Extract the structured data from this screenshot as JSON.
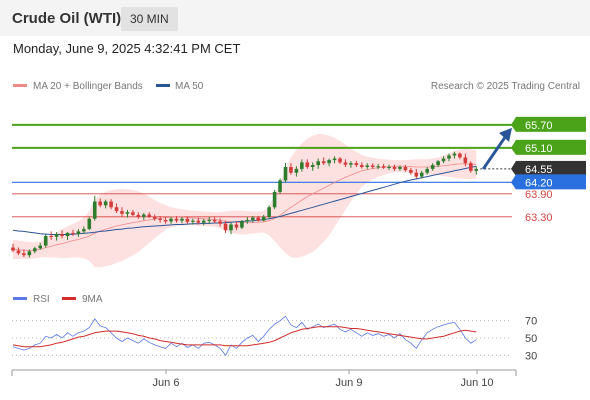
{
  "header": {
    "title": "Crude Oil (WTI)",
    "interval": "30 MIN"
  },
  "datetime": "Monday, June 9, 2025 4:32:41 PM CET",
  "credit": "Research © 2025 Trading Central",
  "legend": {
    "ma20": "MA 20 + Bollinger Bands",
    "ma50": "MA 50",
    "rsi": "RSI",
    "ma9": "9MA"
  },
  "colors": {
    "up": "#2e7d2e",
    "down": "#d43b3b",
    "ma20": "#f08a8a",
    "band": "#fde0e0",
    "ma50": "#2a5599",
    "resistance": "#4aa318",
    "support": "#d64545",
    "pivot": "#2a70e0",
    "current": "#333333",
    "rsi": "#5a78e6",
    "rsi_ma": "#d42b2b"
  },
  "chart_data": [
    {
      "type": "candlestick",
      "name": "Crude Oil (WTI)",
      "ylim": [
        61.6,
        66.4
      ],
      "x_labels": [
        "Jun 6",
        "Jun 9",
        "Jun 10"
      ],
      "ohlc": [
        [
          62.5,
          62.6,
          62.38,
          62.42
        ],
        [
          62.42,
          62.5,
          62.3,
          62.35
        ],
        [
          62.35,
          62.45,
          62.25,
          62.3
        ],
        [
          62.3,
          62.45,
          62.24,
          62.4
        ],
        [
          62.4,
          62.52,
          62.35,
          62.48
        ],
        [
          62.48,
          62.62,
          62.44,
          62.55
        ],
        [
          62.55,
          62.85,
          62.5,
          62.8
        ],
        [
          62.8,
          62.92,
          62.7,
          62.78
        ],
        [
          62.78,
          62.9,
          62.68,
          62.85
        ],
        [
          62.85,
          62.95,
          62.74,
          62.8
        ],
        [
          62.8,
          62.9,
          62.7,
          62.88
        ],
        [
          62.88,
          62.96,
          62.8,
          62.85
        ],
        [
          62.85,
          62.98,
          62.78,
          62.92
        ],
        [
          62.92,
          63.05,
          62.85,
          62.98
        ],
        [
          62.98,
          63.3,
          62.95,
          63.25
        ],
        [
          63.25,
          63.85,
          63.2,
          63.7
        ],
        [
          63.7,
          63.78,
          63.55,
          63.6
        ],
        [
          63.6,
          63.75,
          63.52,
          63.7
        ],
        [
          63.7,
          63.76,
          63.5,
          63.55
        ],
        [
          63.55,
          63.65,
          63.4,
          63.45
        ],
        [
          63.45,
          63.55,
          63.3,
          63.38
        ],
        [
          63.38,
          63.48,
          63.28,
          63.42
        ],
        [
          63.42,
          63.48,
          63.32,
          63.35
        ],
        [
          63.35,
          63.42,
          63.25,
          63.3
        ],
        [
          63.3,
          63.4,
          63.22,
          63.36
        ],
        [
          63.36,
          63.42,
          63.27,
          63.3
        ],
        [
          63.3,
          63.36,
          63.2,
          63.25
        ],
        [
          63.25,
          63.32,
          63.15,
          63.22
        ],
        [
          63.22,
          63.3,
          63.12,
          63.18
        ],
        [
          63.18,
          63.3,
          63.12,
          63.25
        ],
        [
          63.25,
          63.32,
          63.15,
          63.2
        ],
        [
          63.2,
          63.3,
          63.13,
          63.25
        ],
        [
          63.25,
          63.3,
          63.12,
          63.17
        ],
        [
          63.17,
          63.25,
          63.1,
          63.2
        ],
        [
          63.2,
          63.28,
          63.1,
          63.15
        ],
        [
          63.15,
          63.25,
          63.08,
          63.2
        ],
        [
          63.2,
          63.3,
          63.12,
          63.22
        ],
        [
          63.22,
          63.3,
          63.14,
          63.18
        ],
        [
          63.18,
          63.26,
          63.05,
          63.12
        ],
        [
          63.12,
          63.2,
          62.88,
          62.95
        ],
        [
          62.95,
          63.15,
          62.85,
          63.1
        ],
        [
          63.1,
          63.18,
          62.95,
          63.02
        ],
        [
          63.02,
          63.22,
          62.98,
          63.18
        ],
        [
          63.18,
          63.3,
          63.12,
          63.22
        ],
        [
          63.22,
          63.32,
          63.15,
          63.28
        ],
        [
          63.28,
          63.32,
          63.18,
          63.2
        ],
        [
          63.2,
          63.35,
          63.18,
          63.3
        ],
        [
          63.3,
          63.6,
          63.25,
          63.55
        ],
        [
          63.55,
          64.0,
          63.5,
          63.95
        ],
        [
          63.95,
          64.3,
          63.9,
          64.25
        ],
        [
          64.25,
          64.7,
          64.2,
          64.6
        ],
        [
          64.6,
          64.7,
          64.4,
          64.45
        ],
        [
          64.45,
          64.62,
          64.35,
          64.55
        ],
        [
          64.55,
          64.8,
          64.48,
          64.72
        ],
        [
          64.72,
          64.8,
          64.55,
          64.6
        ],
        [
          64.6,
          64.72,
          64.5,
          64.65
        ],
        [
          64.65,
          64.82,
          64.55,
          64.75
        ],
        [
          64.75,
          64.85,
          64.65,
          64.7
        ],
        [
          64.7,
          64.82,
          64.62,
          64.78
        ],
        [
          64.78,
          64.88,
          64.7,
          64.82
        ],
        [
          64.82,
          64.86,
          64.68,
          64.72
        ],
        [
          64.72,
          64.8,
          64.6,
          64.66
        ],
        [
          64.66,
          64.75,
          64.58,
          64.7
        ],
        [
          64.7,
          64.76,
          64.6,
          64.65
        ],
        [
          64.65,
          64.72,
          64.56,
          64.6
        ],
        [
          64.6,
          64.7,
          64.55,
          64.64
        ],
        [
          64.64,
          64.7,
          64.55,
          64.6
        ],
        [
          64.6,
          64.68,
          64.54,
          64.62
        ],
        [
          64.62,
          64.68,
          64.55,
          64.58
        ],
        [
          64.58,
          64.66,
          64.52,
          64.6
        ],
        [
          64.6,
          64.66,
          64.5,
          64.55
        ],
        [
          64.55,
          64.64,
          64.5,
          64.6
        ],
        [
          64.6,
          64.65,
          64.48,
          64.52
        ],
        [
          64.52,
          64.58,
          64.4,
          64.45
        ],
        [
          64.45,
          64.55,
          64.3,
          64.35
        ],
        [
          64.35,
          64.5,
          64.3,
          64.45
        ],
        [
          64.45,
          64.6,
          64.4,
          64.55
        ],
        [
          64.55,
          64.7,
          64.5,
          64.65
        ],
        [
          64.65,
          64.78,
          64.6,
          64.75
        ],
        [
          64.75,
          64.88,
          64.7,
          64.82
        ],
        [
          64.82,
          64.95,
          64.75,
          64.9
        ],
        [
          64.9,
          65.0,
          64.82,
          64.95
        ],
        [
          64.95,
          64.98,
          64.8,
          64.85
        ],
        [
          64.85,
          64.95,
          64.62,
          64.7
        ],
        [
          64.7,
          64.75,
          64.45,
          64.5
        ],
        [
          64.5,
          64.62,
          64.4,
          64.55
        ]
      ],
      "ma20": [
        62.45,
        62.44,
        62.43,
        62.42,
        62.43,
        62.45,
        62.5,
        62.53,
        62.57,
        62.6,
        62.64,
        62.68,
        62.71,
        62.75,
        62.8,
        62.87,
        62.93,
        62.98,
        63.02,
        63.06,
        63.09,
        63.12,
        63.15,
        63.17,
        63.2,
        63.22,
        63.24,
        63.26,
        63.28,
        63.29,
        63.29,
        63.29,
        63.28,
        63.27,
        63.26,
        63.25,
        63.24,
        63.23,
        63.21,
        63.19,
        63.17,
        63.16,
        63.15,
        63.15,
        63.15,
        63.16,
        63.17,
        63.2,
        63.26,
        63.34,
        63.45,
        63.55,
        63.64,
        63.74,
        63.83,
        63.9,
        63.98,
        64.05,
        64.12,
        64.2,
        64.27,
        64.33,
        64.39,
        64.45,
        64.5,
        64.53,
        64.56,
        64.58,
        64.6,
        64.61,
        64.62,
        64.62,
        64.62,
        64.61,
        64.6,
        64.6,
        64.6,
        64.61,
        64.62,
        64.63,
        64.65,
        64.67,
        64.68,
        64.68,
        64.67,
        64.67
      ],
      "bb_upper": [
        62.7,
        62.68,
        62.66,
        62.64,
        62.64,
        62.66,
        62.75,
        62.82,
        62.9,
        62.98,
        63.05,
        63.12,
        63.18,
        63.28,
        63.45,
        63.75,
        63.88,
        63.95,
        64.0,
        64.02,
        64.03,
        64.02,
        64.0,
        63.96,
        63.9,
        63.82,
        63.74,
        63.66,
        63.6,
        63.55,
        63.52,
        63.5,
        63.48,
        63.46,
        63.45,
        63.44,
        63.43,
        63.42,
        63.42,
        63.44,
        63.46,
        63.47,
        63.46,
        63.45,
        63.44,
        63.44,
        63.45,
        63.58,
        63.85,
        64.18,
        64.55,
        64.85,
        65.05,
        65.22,
        65.34,
        65.42,
        65.46,
        65.45,
        65.42,
        65.36,
        65.28,
        65.18,
        65.08,
        65.0,
        64.92,
        64.87,
        64.84,
        64.82,
        64.8,
        64.79,
        64.78,
        64.78,
        64.78,
        64.79,
        64.8,
        64.8,
        64.8,
        64.82,
        64.85,
        64.9,
        64.96,
        65.02,
        65.06,
        65.07,
        65.06,
        65.04
      ],
      "bb_lower": [
        62.2,
        62.2,
        62.2,
        62.2,
        62.22,
        62.24,
        62.25,
        62.24,
        62.24,
        62.22,
        62.23,
        62.24,
        62.24,
        62.22,
        62.15,
        61.99,
        61.98,
        62.01,
        62.04,
        62.1,
        62.15,
        62.22,
        62.3,
        62.38,
        62.5,
        62.62,
        62.74,
        62.86,
        62.96,
        63.03,
        63.06,
        63.08,
        63.08,
        63.08,
        63.07,
        63.06,
        63.05,
        63.04,
        63.0,
        62.94,
        62.88,
        62.85,
        62.84,
        62.85,
        62.86,
        62.88,
        62.89,
        62.82,
        62.67,
        62.5,
        62.35,
        62.25,
        62.23,
        62.26,
        62.32,
        62.38,
        62.5,
        62.65,
        62.82,
        63.04,
        63.26,
        63.48,
        63.7,
        63.9,
        64.08,
        64.19,
        64.28,
        64.34,
        64.4,
        64.43,
        64.46,
        64.46,
        64.46,
        64.43,
        64.4,
        64.4,
        64.4,
        64.4,
        64.39,
        64.36,
        64.34,
        64.32,
        64.3,
        64.29,
        64.28,
        64.3
      ],
      "ma50": [
        62.95,
        62.93,
        62.92,
        62.9,
        62.88,
        62.86,
        62.85,
        62.84,
        62.84,
        62.84,
        62.84,
        62.85,
        62.86,
        62.87,
        62.88,
        62.9,
        62.92,
        62.93,
        62.95,
        62.97,
        62.98,
        63.0,
        63.01,
        63.03,
        63.04,
        63.05,
        63.06,
        63.07,
        63.08,
        63.09,
        63.1,
        63.1,
        63.11,
        63.12,
        63.12,
        63.13,
        63.13,
        63.14,
        63.14,
        63.15,
        63.16,
        63.17,
        63.18,
        63.19,
        63.2,
        63.21,
        63.23,
        63.25,
        63.28,
        63.31,
        63.35,
        63.39,
        63.43,
        63.47,
        63.51,
        63.55,
        63.59,
        63.63,
        63.67,
        63.71,
        63.75,
        63.79,
        63.83,
        63.87,
        63.91,
        63.95,
        63.99,
        64.03,
        64.07,
        64.11,
        64.15,
        64.19,
        64.23,
        64.26,
        64.29,
        64.32,
        64.35,
        64.38,
        64.41,
        64.44,
        64.47,
        64.5,
        64.53,
        64.56,
        64.59,
        64.62
      ],
      "levels": [
        {
          "label": "65.70",
          "value": 65.7,
          "role": "resistance"
        },
        {
          "label": "65.10",
          "value": 65.1,
          "role": "resistance"
        },
        {
          "label": "64.55",
          "value": 64.55,
          "role": "current"
        },
        {
          "label": "64.20",
          "value": 64.2,
          "role": "pivot"
        },
        {
          "label": "63.90",
          "value": 63.9,
          "role": "support"
        },
        {
          "label": "63.30",
          "value": 63.3,
          "role": "support"
        }
      ],
      "target_arrow": {
        "from": 64.55,
        "to": 65.7
      }
    },
    {
      "type": "line",
      "name": "RSI",
      "ylim": [
        20,
        80
      ],
      "y_ticks": [
        70,
        50,
        30
      ],
      "series": [
        {
          "name": "RSI",
          "values": [
            40,
            38,
            36,
            38,
            42,
            44,
            52,
            50,
            54,
            50,
            56,
            52,
            56,
            58,
            62,
            72,
            64,
            62,
            56,
            50,
            46,
            50,
            47,
            44,
            49,
            45,
            42,
            40,
            38,
            44,
            40,
            44,
            39,
            42,
            38,
            44,
            45,
            42,
            38,
            30,
            42,
            38,
            45,
            50,
            53,
            46,
            52,
            60,
            66,
            70,
            75,
            65,
            62,
            68,
            60,
            63,
            66,
            62,
            64,
            66,
            60,
            57,
            60,
            56,
            52,
            56,
            53,
            55,
            52,
            54,
            50,
            55,
            48,
            44,
            38,
            48,
            56,
            60,
            63,
            65,
            67,
            68,
            60,
            50,
            44,
            48
          ]
        },
        {
          "name": "9MA",
          "values": [
            42,
            41,
            40,
            40,
            40,
            40,
            41,
            42,
            44,
            45,
            47,
            49,
            51,
            52,
            54,
            56,
            57,
            58,
            58,
            58,
            57,
            56,
            55,
            53,
            52,
            50,
            49,
            47,
            46,
            45,
            44,
            43,
            42,
            42,
            42,
            42,
            42,
            42,
            42,
            41,
            41,
            41,
            41,
            41,
            42,
            43,
            44,
            45,
            47,
            50,
            53,
            56,
            58,
            60,
            61,
            62,
            63,
            63,
            63,
            63,
            63,
            62,
            61,
            61,
            60,
            59,
            58,
            57,
            56,
            55,
            54,
            53,
            52,
            51,
            50,
            49,
            49,
            50,
            51,
            52,
            54,
            56,
            58,
            59,
            58,
            57
          ]
        }
      ]
    }
  ]
}
